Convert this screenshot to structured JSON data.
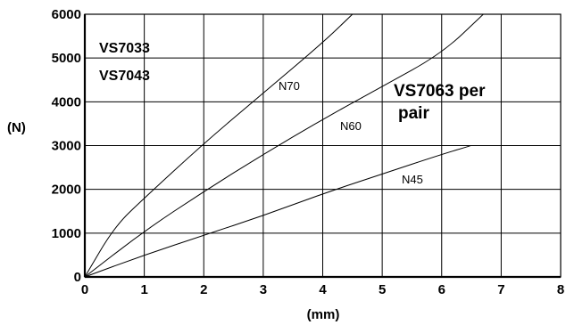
{
  "chart_data": {
    "type": "line",
    "xlabel": "(mm)",
    "ylabel": "(N)",
    "xlim": [
      0,
      8
    ],
    "ylim": [
      0,
      6000
    ],
    "x_ticks": [
      "0",
      "1",
      "2",
      "3",
      "4",
      "5",
      "6",
      "7",
      "8"
    ],
    "y_ticks": [
      "0",
      "1000",
      "2000",
      "3000",
      "4000",
      "5000",
      "6000"
    ],
    "grid": true,
    "series": [
      {
        "name": "N70",
        "x": [
          0,
          0.5,
          1,
          2,
          3,
          4,
          4.5
        ],
        "y": [
          0,
          1150,
          1800,
          3050,
          4200,
          5350,
          6000
        ]
      },
      {
        "name": "N60",
        "x": [
          0,
          1,
          2,
          3,
          4,
          5,
          6,
          6.7
        ],
        "y": [
          0,
          1050,
          1950,
          2800,
          3600,
          4350,
          5100,
          6000
        ]
      },
      {
        "name": "N45",
        "x": [
          0,
          1,
          2,
          3,
          4,
          5,
          6,
          6.5
        ],
        "y": [
          0,
          500,
          950,
          1400,
          1900,
          2350,
          2800,
          3000
        ]
      }
    ],
    "annotations": [
      "VS7033",
      "VS7043",
      "VS7063 per",
      "pair"
    ],
    "line_color": "#000000"
  }
}
